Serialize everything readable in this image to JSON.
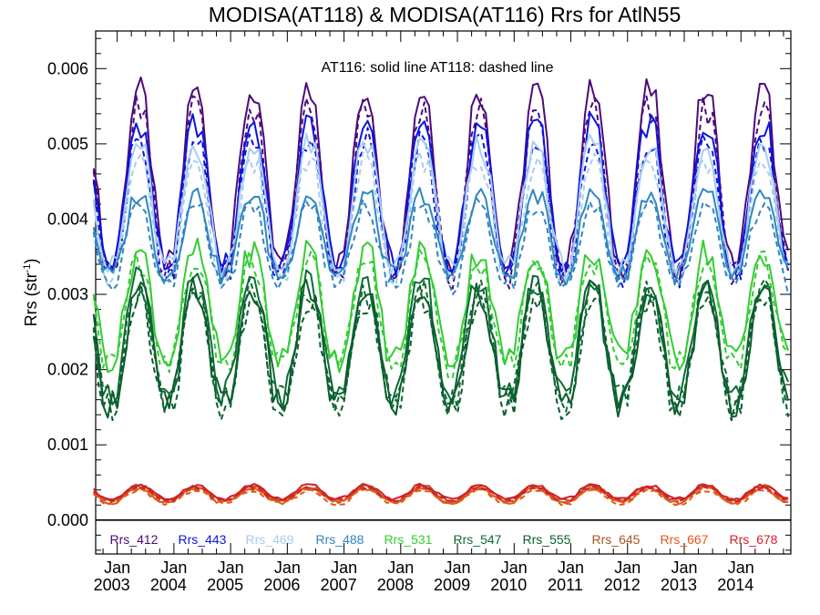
{
  "chart_data": {
    "type": "line",
    "title": "MODISA(AT118) & MODISA(AT116)  Rrs for AtlN55",
    "ylabel_main": "Rrs (str",
    "ylabel_sup": "-1",
    "ylabel_tail": ")",
    "annotation": "AT116: solid line   AT118: dashed line",
    "xlim": [
      2002.62,
      2014.88
    ],
    "ylim": [
      -0.00045,
      0.0065
    ],
    "x_month_label": "Jan",
    "x_ticks": [
      "2003",
      "2004",
      "2005",
      "2006",
      "2007",
      "2008",
      "2009",
      "2010",
      "2011",
      "2012",
      "2013",
      "2014"
    ],
    "y_ticks": [
      "0.000",
      "0.001",
      "0.002",
      "0.003",
      "0.004",
      "0.005",
      "0.006"
    ],
    "y_tick_values": [
      0,
      0.001,
      0.002,
      0.003,
      0.004,
      0.005,
      0.006
    ],
    "time_start": "2002-08",
    "time_step": "month",
    "lower_envelope": [
      0.0013,
      0.00128,
      0.00132,
      0.00133,
      0.00137,
      0.00138,
      0.00128,
      0.0013,
      0.00136,
      0.00134,
      0.00135,
      0.00137
    ],
    "series": [
      {
        "name": "Rrs_412",
        "color": "#4b0a7d",
        "summer": 0.0053,
        "winter": 0.0036,
        "ratio": 0.0,
        "amp": 1.45
      },
      {
        "name": "Rrs_443",
        "color": "#0c14e0",
        "summer": 0.005,
        "winter": 0.0035,
        "ratio": 0.0,
        "amp": 1.35
      },
      {
        "name": "Rrs_469",
        "color": "#a7cdf0",
        "summer": 0.0048,
        "winter": 0.0034,
        "ratio": 0.0,
        "amp": 1.25
      },
      {
        "name": "Rrs_488",
        "color": "#2f86c1",
        "summer": 0.0043,
        "winter": 0.0032,
        "ratio": 0.0,
        "amp": 1.05
      },
      {
        "name": "Rrs_531",
        "color": "#33cc33",
        "summer": 0.0036,
        "winter": 0.002,
        "ratio": 0.0,
        "amp": 0.95
      },
      {
        "name": "Rrs_547",
        "color": "#0e6b35",
        "summer": 0.0032,
        "winter": 0.0015,
        "ratio": 0.0,
        "amp": 0.95
      },
      {
        "name": "Rrs_555",
        "color": "#0b5e2e",
        "summer": 0.0031,
        "winter": 0.0014,
        "ratio": 0.0,
        "amp": 0.95
      },
      {
        "name": "Rrs_645",
        "color": "#a8561f",
        "summer": 0.00045,
        "winter": 0.00025,
        "ratio": 0.0,
        "amp": 1.0
      },
      {
        "name": "Rrs_667",
        "color": "#e2581a",
        "summer": 0.00042,
        "winter": 0.00022,
        "ratio": 0.0,
        "amp": 1.0
      },
      {
        "name": "Rrs_678",
        "color": "#d41f2a",
        "summer": 0.00046,
        "winter": 0.00027,
        "ratio": 0.0,
        "amp": 1.0
      }
    ]
  }
}
